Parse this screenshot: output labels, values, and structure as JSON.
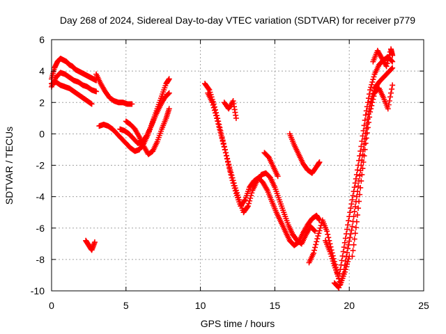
{
  "chart_data": {
    "type": "scatter",
    "title": "Day 268 of 2024, Sidereal Day-to-day VTEC variation (SDTVAR) for receiver p779",
    "xlabel": "GPS time / hours",
    "ylabel": "SDTVAR / TECUs",
    "xlim": [
      0,
      25
    ],
    "ylim": [
      -10,
      6
    ],
    "xticks": [
      "0",
      "5",
      "10",
      "15",
      "20",
      "25"
    ],
    "yticks": [
      "-10",
      "-8",
      "-6",
      "-4",
      "-2",
      "0",
      "2",
      "4",
      "6"
    ],
    "grid": true,
    "marker": "plus",
    "marker_color": "#ff0000",
    "series": [
      {
        "x": [
          0.0,
          0.2,
          0.4,
          0.6,
          0.8,
          1.0,
          1.2,
          1.4,
          1.6,
          1.8,
          2.0,
          2.2,
          2.4,
          2.6,
          2.8,
          3.0
        ],
        "y": [
          3.5,
          4.2,
          4.6,
          4.8,
          4.7,
          4.6,
          4.4,
          4.3,
          4.1,
          4.0,
          3.9,
          3.8,
          3.7,
          3.6,
          3.5,
          3.4
        ]
      },
      {
        "x": [
          0.0,
          0.3,
          0.6,
          0.9,
          1.2,
          1.5,
          1.8,
          2.1,
          2.4,
          2.7,
          3.0
        ],
        "y": [
          3.0,
          3.6,
          3.9,
          3.8,
          3.6,
          3.4,
          3.3,
          3.1,
          3.0,
          2.8,
          2.7
        ]
      },
      {
        "x": [
          0.0,
          0.3,
          0.6,
          0.9,
          1.2,
          1.5,
          1.8,
          2.1,
          2.4,
          2.7
        ],
        "y": [
          3.2,
          3.3,
          3.1,
          3.0,
          2.9,
          2.7,
          2.5,
          2.3,
          2.1,
          1.9
        ]
      },
      {
        "x": [
          3.0,
          3.3,
          3.6,
          3.9,
          4.2,
          4.5,
          4.8,
          5.1,
          5.4
        ],
        "y": [
          3.8,
          3.2,
          2.7,
          2.3,
          2.1,
          2.0,
          2.0,
          1.9,
          1.9
        ]
      },
      {
        "x": [
          3.2,
          3.5,
          3.8,
          4.1,
          4.4,
          4.7,
          5.0,
          5.3,
          5.6,
          5.9,
          6.2,
          6.5,
          6.8,
          7.1,
          7.4,
          7.7,
          7.9
        ],
        "y": [
          0.5,
          0.6,
          0.5,
          0.3,
          0.0,
          -0.3,
          -0.6,
          -0.9,
          -1.1,
          -1.0,
          -0.6,
          0.0,
          0.8,
          1.6,
          2.4,
          3.2,
          3.5
        ]
      },
      {
        "x": [
          4.6,
          4.9,
          5.2,
          5.5,
          5.8,
          6.1,
          6.4,
          6.7,
          7.0,
          7.3,
          7.6,
          7.9
        ],
        "y": [
          0.3,
          0.2,
          0.0,
          -0.3,
          -0.6,
          -0.5,
          -0.1,
          0.5,
          1.2,
          1.8,
          2.3,
          2.6
        ]
      },
      {
        "x": [
          5.0,
          5.3,
          5.6,
          5.9,
          6.2,
          6.5,
          6.8,
          7.1,
          7.4,
          7.7,
          7.9
        ],
        "y": [
          0.8,
          0.6,
          0.3,
          -0.2,
          -0.8,
          -1.3,
          -1.1,
          -0.5,
          0.3,
          1.0,
          1.6
        ]
      },
      {
        "x": [
          2.3,
          2.5,
          2.7,
          2.9
        ],
        "y": [
          -6.8,
          -7.1,
          -7.4,
          -6.9
        ]
      },
      {
        "x": [
          10.3,
          10.6,
          10.9,
          11.2,
          11.5,
          11.8,
          12.1,
          12.4,
          12.7,
          13.0,
          13.3,
          13.6,
          13.9,
          14.2,
          14.5,
          14.8,
          15.1,
          15.4,
          15.7,
          16.0,
          16.3,
          16.6,
          16.9,
          17.2,
          17.5,
          17.8,
          18.0
        ],
        "y": [
          3.2,
          2.8,
          1.9,
          0.8,
          -0.4,
          -1.6,
          -2.8,
          -3.8,
          -4.6,
          -4.2,
          -3.4,
          -3.0,
          -2.8,
          -3.1,
          -3.6,
          -4.3,
          -5.0,
          -5.6,
          -6.2,
          -6.8,
          -7.1,
          -6.9,
          -6.3,
          -5.8,
          -5.4,
          -5.2,
          -5.5
        ]
      },
      {
        "x": [
          10.5,
          10.8,
          11.1,
          11.4,
          11.7,
          12.0,
          12.3,
          12.6,
          12.9,
          13.2,
          13.5,
          13.8,
          14.1,
          14.4,
          14.7,
          15.0,
          15.3,
          15.6,
          15.9,
          16.2,
          16.5,
          16.8,
          17.1,
          17.4,
          17.7
        ],
        "y": [
          2.6,
          2.0,
          1.0,
          -0.1,
          -1.2,
          -2.3,
          -3.3,
          -4.2,
          -5.0,
          -4.6,
          -3.6,
          -3.0,
          -2.6,
          -2.5,
          -2.8,
          -3.4,
          -4.2,
          -5.0,
          -5.8,
          -6.4,
          -6.8,
          -7.0,
          -6.4,
          -5.9,
          -6.2
        ]
      },
      {
        "x": [
          11.6,
          11.9,
          12.2,
          12.4
        ],
        "y": [
          2.0,
          1.6,
          2.1,
          1.0
        ]
      },
      {
        "x": [
          14.3,
          14.6,
          14.9,
          15.2
        ],
        "y": [
          -1.2,
          -1.5,
          -2.1,
          -2.7
        ]
      },
      {
        "x": [
          16.0,
          16.3,
          16.6,
          16.9,
          17.2,
          17.5,
          17.8,
          18.0
        ],
        "y": [
          0.0,
          -0.7,
          -1.3,
          -1.9,
          -2.3,
          -2.5,
          -2.1,
          -1.8
        ]
      },
      {
        "x": [
          17.3,
          17.6,
          17.9,
          18.2,
          18.5,
          18.8,
          19.1,
          19.4,
          19.7,
          20.0
        ],
        "y": [
          -8.2,
          -7.6,
          -6.5,
          -5.5,
          -6.2,
          -7.4,
          -8.5,
          -9.6,
          -8.8,
          -7.8
        ]
      },
      {
        "x": [
          18.4,
          18.7,
          19.0,
          19.3,
          19.6,
          19.9,
          20.2,
          20.5,
          20.8,
          21.1,
          21.4,
          21.7,
          22.0,
          22.3,
          22.6,
          22.9
        ],
        "y": [
          -6.8,
          -7.5,
          -8.4,
          -9.2,
          -7.5,
          -5.8,
          -4.2,
          -2.6,
          -0.8,
          1.2,
          2.8,
          3.8,
          4.4,
          4.7,
          4.9,
          4.6
        ]
      },
      {
        "x": [
          19.0,
          19.3,
          19.6,
          19.9,
          20.2,
          20.5,
          20.8,
          21.1,
          21.4,
          21.7,
          22.0,
          22.3,
          22.6,
          22.9
        ],
        "y": [
          -9.5,
          -9.8,
          -8.9,
          -7.3,
          -5.9,
          -4.0,
          -2.0,
          0.0,
          1.9,
          2.9,
          3.3,
          3.6,
          3.9,
          4.2
        ]
      },
      {
        "x": [
          20.2,
          20.5,
          20.8,
          21.1,
          21.4,
          21.7,
          22.0,
          22.3,
          22.6,
          22.9
        ],
        "y": [
          -7.8,
          -5.6,
          -3.0,
          -0.6,
          1.4,
          2.6,
          2.9,
          2.3,
          1.6,
          3.1
        ]
      },
      {
        "x": [
          21.6,
          21.9,
          22.2,
          22.5,
          22.8,
          22.9
        ],
        "y": [
          4.6,
          5.3,
          4.8,
          4.3,
          5.4,
          5.0
        ]
      }
    ]
  }
}
